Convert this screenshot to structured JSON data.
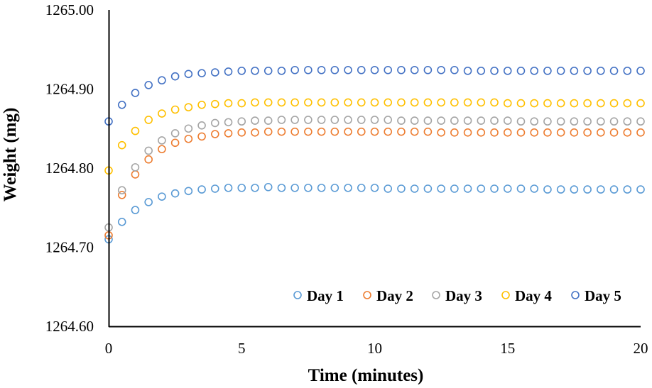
{
  "chart_data": {
    "type": "scatter",
    "title": "",
    "xlabel": "Time (minutes)",
    "ylabel": "Weight (mg)",
    "xlim": [
      0,
      20
    ],
    "ylim": [
      1264.6,
      1265.0
    ],
    "x_ticks": [
      0,
      5,
      10,
      15,
      20
    ],
    "x_tick_labels": [
      "0",
      "5",
      "10",
      "15",
      "20"
    ],
    "y_ticks": [
      1264.6,
      1264.7,
      1264.8,
      1264.9,
      1265.0
    ],
    "y_tick_labels": [
      "1264.60",
      "1264.70",
      "1264.80",
      "1264.90",
      "1265.00"
    ],
    "grid": false,
    "legend_position": "bottom-right",
    "marker": "hollow-circle",
    "x": [
      0,
      0.5,
      1,
      1.5,
      2,
      2.5,
      3,
      3.5,
      4,
      4.5,
      5,
      5.5,
      6,
      6.5,
      7,
      7.5,
      8,
      8.5,
      9,
      9.5,
      10,
      10.5,
      11,
      11.5,
      12,
      12.5,
      13,
      13.5,
      14,
      14.5,
      15,
      15.5,
      16,
      16.5,
      17,
      17.5,
      18,
      18.5,
      19,
      19.5,
      20
    ],
    "series": [
      {
        "name": "Day 1",
        "color": "#5b9bd5",
        "values": [
          1264.71,
          1264.732,
          1264.747,
          1264.757,
          1264.764,
          1264.768,
          1264.771,
          1264.773,
          1264.774,
          1264.775,
          1264.775,
          1264.775,
          1264.776,
          1264.775,
          1264.775,
          1264.775,
          1264.775,
          1264.775,
          1264.775,
          1264.775,
          1264.775,
          1264.774,
          1264.774,
          1264.774,
          1264.774,
          1264.774,
          1264.774,
          1264.774,
          1264.774,
          1264.774,
          1264.774,
          1264.774,
          1264.774,
          1264.773,
          1264.773,
          1264.773,
          1264.773,
          1264.773,
          1264.773,
          1264.773,
          1264.773
        ]
      },
      {
        "name": "Day 2",
        "color": "#ed7d31",
        "values": [
          1264.715,
          1264.766,
          1264.792,
          1264.811,
          1264.824,
          1264.832,
          1264.837,
          1264.84,
          1264.843,
          1264.844,
          1264.845,
          1264.845,
          1264.846,
          1264.846,
          1264.846,
          1264.846,
          1264.846,
          1264.846,
          1264.846,
          1264.846,
          1264.846,
          1264.846,
          1264.846,
          1264.846,
          1264.846,
          1264.845,
          1264.845,
          1264.845,
          1264.845,
          1264.845,
          1264.845,
          1264.845,
          1264.845,
          1264.845,
          1264.845,
          1264.845,
          1264.845,
          1264.845,
          1264.845,
          1264.845,
          1264.845
        ]
      },
      {
        "name": "Day 3",
        "color": "#a5a5a5",
        "values": [
          1264.725,
          1264.772,
          1264.801,
          1264.822,
          1264.835,
          1264.844,
          1264.85,
          1264.854,
          1264.857,
          1264.858,
          1264.859,
          1264.86,
          1264.86,
          1264.861,
          1264.861,
          1264.861,
          1264.861,
          1264.861,
          1264.861,
          1264.861,
          1264.861,
          1264.861,
          1264.86,
          1264.86,
          1264.86,
          1264.86,
          1264.86,
          1264.86,
          1264.86,
          1264.86,
          1264.86,
          1264.859,
          1264.859,
          1264.859,
          1264.859,
          1264.859,
          1264.859,
          1264.859,
          1264.859,
          1264.859,
          1264.859
        ]
      },
      {
        "name": "Day 4",
        "color": "#ffc000",
        "values": [
          1264.797,
          1264.829,
          1264.847,
          1264.861,
          1264.869,
          1264.874,
          1264.877,
          1264.88,
          1264.881,
          1264.882,
          1264.882,
          1264.883,
          1264.883,
          1264.883,
          1264.883,
          1264.883,
          1264.883,
          1264.883,
          1264.883,
          1264.883,
          1264.883,
          1264.883,
          1264.883,
          1264.883,
          1264.883,
          1264.883,
          1264.883,
          1264.883,
          1264.883,
          1264.883,
          1264.882,
          1264.882,
          1264.882,
          1264.882,
          1264.882,
          1264.882,
          1264.882,
          1264.882,
          1264.882,
          1264.882,
          1264.882
        ]
      },
      {
        "name": "Day 5",
        "color": "#4472c4",
        "values": [
          1264.859,
          1264.88,
          1264.895,
          1264.905,
          1264.911,
          1264.916,
          1264.919,
          1264.92,
          1264.921,
          1264.922,
          1264.923,
          1264.923,
          1264.923,
          1264.923,
          1264.924,
          1264.924,
          1264.924,
          1264.924,
          1264.924,
          1264.924,
          1264.924,
          1264.924,
          1264.924,
          1264.924,
          1264.924,
          1264.924,
          1264.924,
          1264.923,
          1264.923,
          1264.923,
          1264.923,
          1264.923,
          1264.923,
          1264.923,
          1264.923,
          1264.923,
          1264.923,
          1264.923,
          1264.923,
          1264.923,
          1264.923
        ]
      }
    ]
  }
}
